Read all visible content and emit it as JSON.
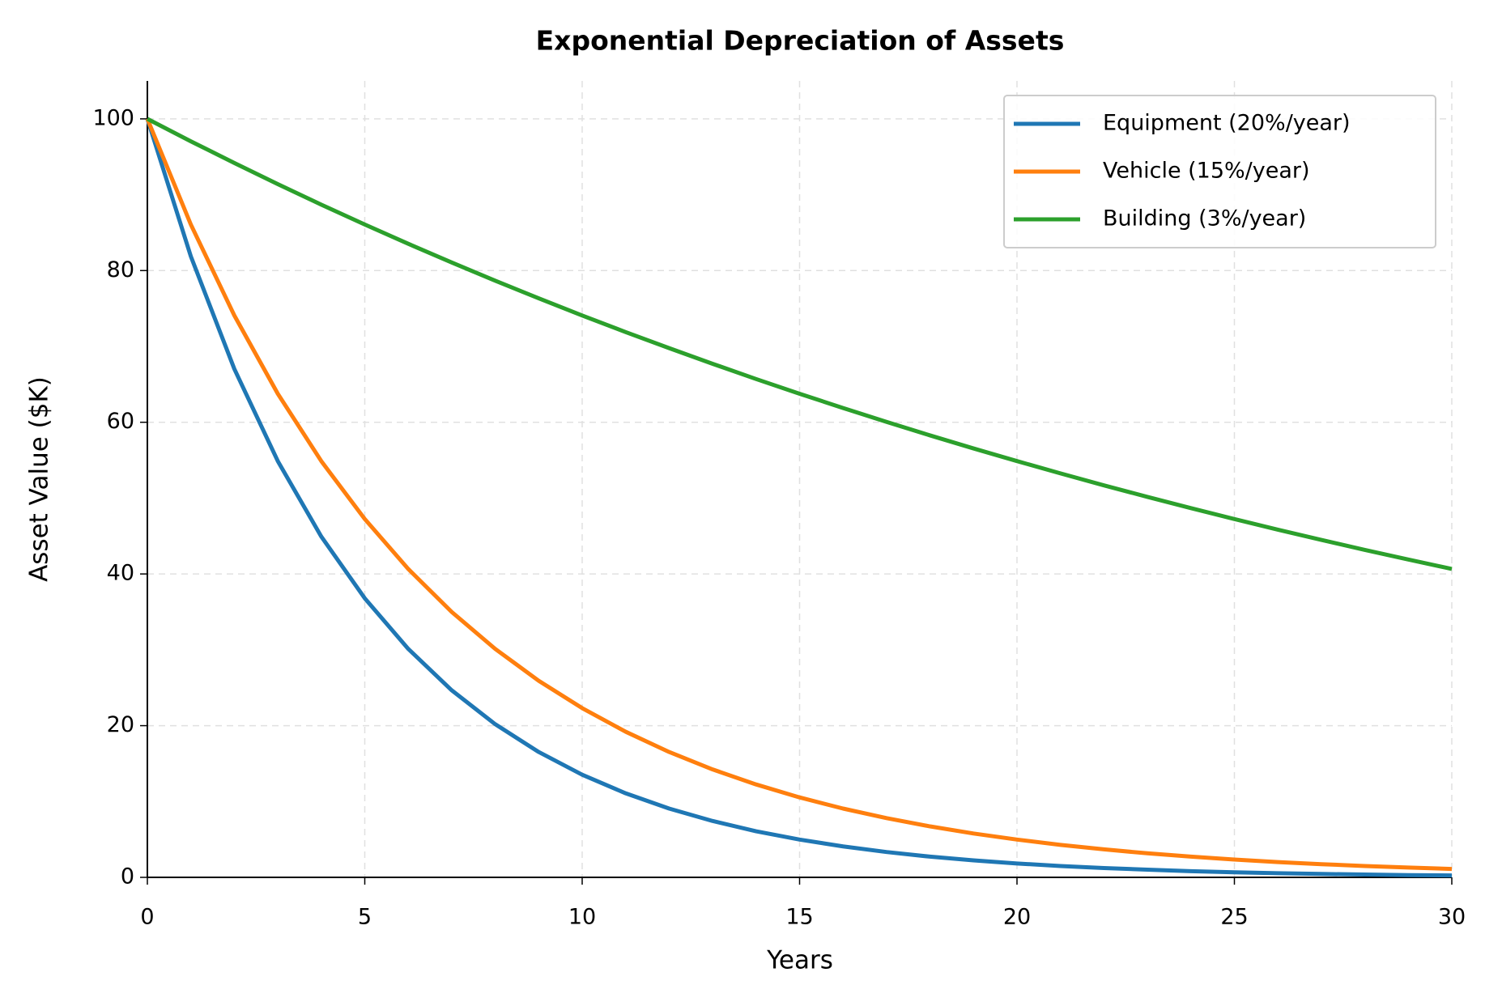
{
  "chart_data": {
    "type": "line",
    "title": "Exponential Depreciation of Assets",
    "x_label": "Years",
    "y_label": "Asset Value ($K)",
    "x": [
      0,
      1,
      2,
      3,
      4,
      5,
      6,
      7,
      8,
      9,
      10,
      11,
      12,
      13,
      14,
      15,
      16,
      17,
      18,
      19,
      20,
      21,
      22,
      23,
      24,
      25,
      26,
      27,
      28,
      29,
      30
    ],
    "series": [
      {
        "name": "Equipment (20%/year)",
        "color": "#1f77b4",
        "values": [
          100,
          81.87,
          67.03,
          54.88,
          44.93,
          36.79,
          30.12,
          24.66,
          20.19,
          16.53,
          13.53,
          11.08,
          9.07,
          7.43,
          6.08,
          4.98,
          4.08,
          3.34,
          2.73,
          2.24,
          1.83,
          1.5,
          1.23,
          1.01,
          0.82,
          0.67,
          0.55,
          0.45,
          0.37,
          0.3,
          0.25
        ]
      },
      {
        "name": "Vehicle (15%/year)",
        "color": "#ff7f0e",
        "values": [
          100,
          86.07,
          74.08,
          63.76,
          54.88,
          47.24,
          40.66,
          34.99,
          30.12,
          25.92,
          22.31,
          19.2,
          16.53,
          14.23,
          12.25,
          10.54,
          9.07,
          7.81,
          6.72,
          5.78,
          4.98,
          4.28,
          3.69,
          3.17,
          2.73,
          2.35,
          2.02,
          1.74,
          1.5,
          1.29,
          1.11
        ]
      },
      {
        "name": "Building (3%/year)",
        "color": "#2ca02c",
        "values": [
          100,
          97.04,
          94.18,
          91.39,
          88.69,
          86.07,
          83.53,
          81.06,
          78.66,
          76.34,
          74.08,
          71.89,
          69.77,
          67.71,
          65.7,
          63.76,
          61.88,
          60.05,
          58.27,
          56.55,
          54.88,
          53.26,
          51.68,
          50.16,
          48.68,
          47.24,
          45.84,
          44.49,
          43.17,
          41.9,
          40.66
        ]
      }
    ],
    "xlim": [
      0,
      30
    ],
    "xticks": [
      0,
      5,
      10,
      15,
      20,
      25,
      30
    ],
    "ylim": [
      0,
      105
    ],
    "yticks": [
      0,
      20,
      40,
      60,
      80,
      100
    ],
    "grid": true,
    "legend": "upper right"
  }
}
